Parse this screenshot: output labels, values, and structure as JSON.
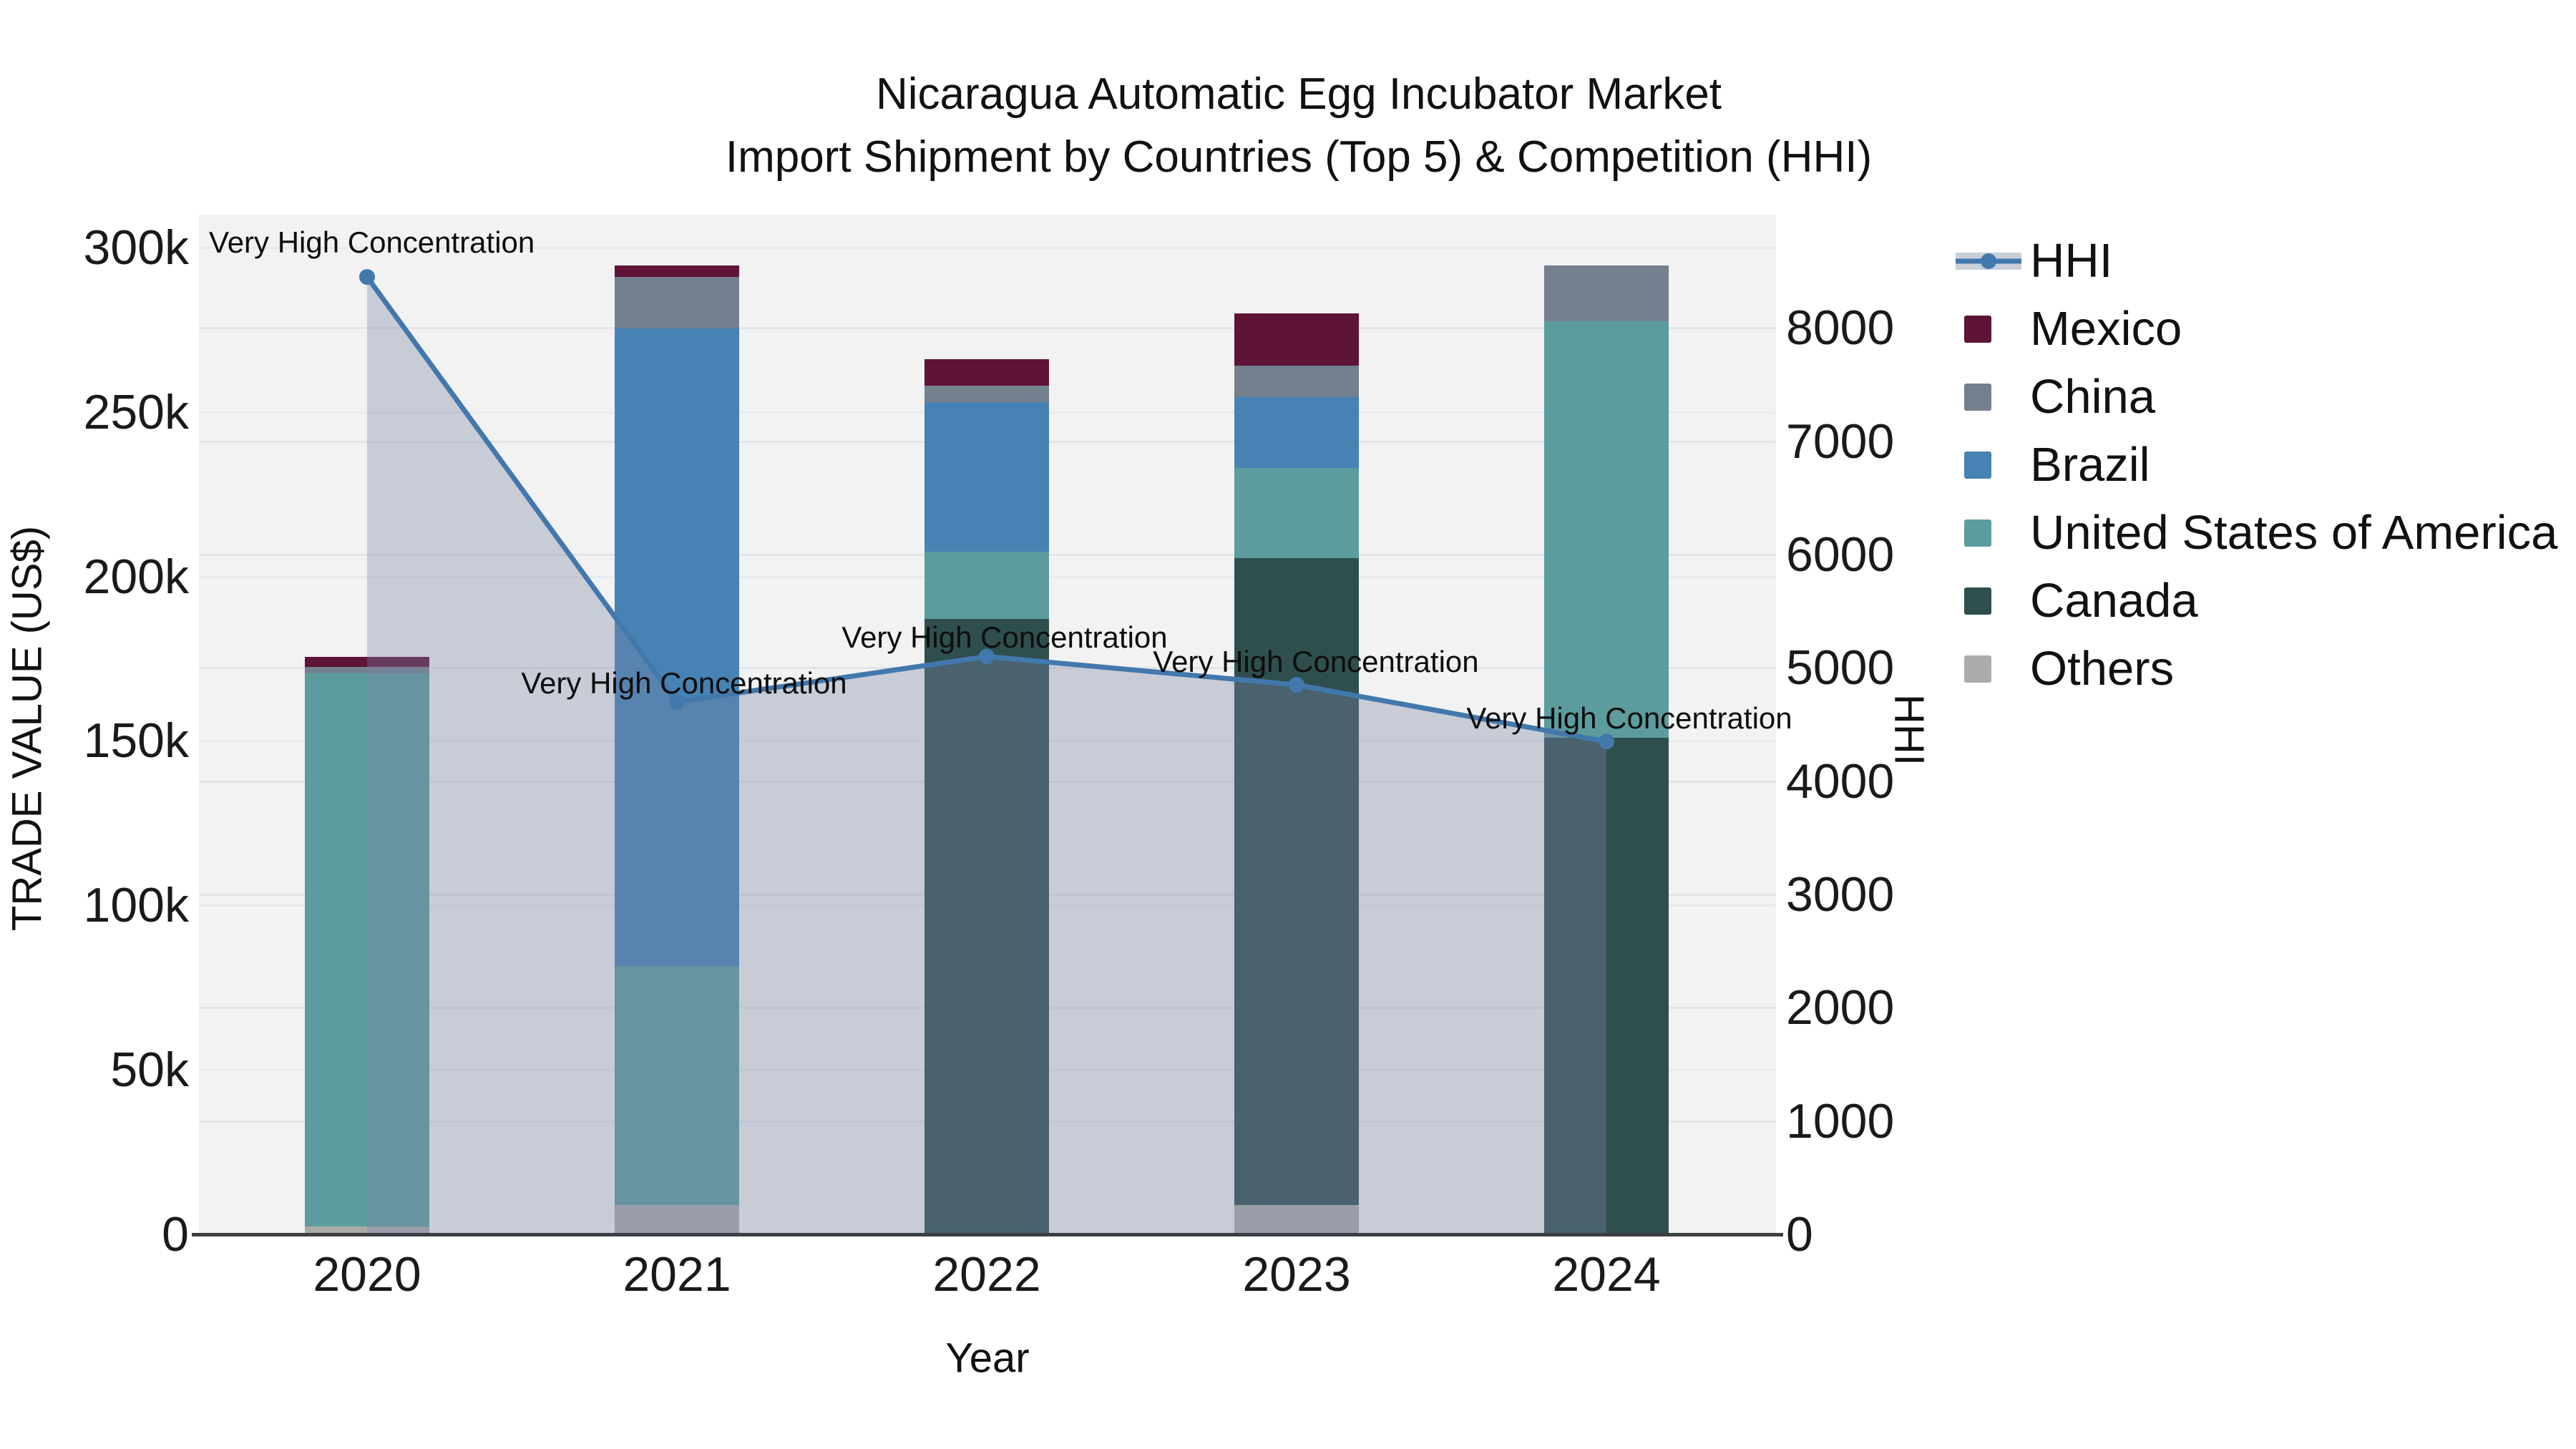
{
  "title": {
    "line1": "Nicaragua Automatic Egg Incubator Market",
    "line2": "Import Shipment by Countries (Top 5) & Competition (HHI)"
  },
  "axes": {
    "left": {
      "title": "TRADE VALUE (US$)",
      "ticks": [
        "0",
        "50k",
        "100k",
        "150k",
        "200k",
        "250k",
        "300k"
      ],
      "tick_step": 50000
    },
    "right": {
      "title": "HHI",
      "ticks": [
        "0",
        "1000",
        "2000",
        "3000",
        "4000",
        "5000",
        "6000",
        "7000",
        "8000"
      ],
      "tick_step": 1000
    },
    "x": {
      "title": "Year",
      "ticks": [
        "2020",
        "2021",
        "2022",
        "2023",
        "2024"
      ]
    }
  },
  "legend": {
    "items": [
      {
        "label": "HHI",
        "type": "line",
        "color": "#4278AC",
        "band_color": "#C9CFD9"
      },
      {
        "label": "Mexico",
        "type": "box",
        "color": "#5E1337"
      },
      {
        "label": "China",
        "type": "box",
        "color": "#74808E"
      },
      {
        "label": "Brazil",
        "type": "box",
        "color": "#4682B4"
      },
      {
        "label": "United States of America",
        "type": "box",
        "color": "#5C9C9E"
      },
      {
        "label": "Canada",
        "type": "box",
        "color": "#2F4F4F"
      },
      {
        "label": "Others",
        "type": "box",
        "color": "#ABABAB"
      }
    ]
  },
  "chart_data": [
    {
      "type": "bar",
      "stacked": true,
      "title": "Nicaragua Automatic Egg Incubator Market Import Shipment by Countries (Top 5) & Competition (HHI)",
      "xlabel": "Year",
      "ylabel": "TRADE VALUE (US$)",
      "categories": [
        "2020",
        "2021",
        "2022",
        "2023",
        "2024"
      ],
      "ylim": [
        0,
        310000
      ],
      "grid": true,
      "legend_position": "right",
      "stack_order_top_to_bottom": [
        "Mexico",
        "China",
        "Brazil",
        "United States of America",
        "Canada",
        "Others"
      ],
      "series": [
        {
          "name": "Mexico",
          "color": "#5E1337",
          "values": [
            3000,
            3500,
            8000,
            16000,
            0
          ]
        },
        {
          "name": "China",
          "color": "#74808E",
          "values": [
            2000,
            15500,
            5000,
            9500,
            17000
          ]
        },
        {
          "name": "Brazil",
          "color": "#4682B4",
          "values": [
            0,
            194000,
            45500,
            21500,
            0
          ]
        },
        {
          "name": "United States of America",
          "color": "#5C9C9E",
          "values": [
            168000,
            72500,
            20500,
            27500,
            126500
          ]
        },
        {
          "name": "Canada",
          "color": "#2F4F4F",
          "values": [
            0,
            0,
            187000,
            196500,
            151000
          ]
        },
        {
          "name": "Others",
          "color": "#ABABAB",
          "values": [
            2500,
            9000,
            0,
            9000,
            0
          ]
        }
      ]
    },
    {
      "type": "line",
      "name": "HHI",
      "x": [
        "2020",
        "2021",
        "2022",
        "2023",
        "2024"
      ],
      "values": [
        8450,
        4700,
        5100,
        4850,
        4350
      ],
      "ylabel": "HHI",
      "ylim": [
        0,
        9000
      ],
      "color": "#4278AC",
      "area_fill": true,
      "area_color": "#7A88A5",
      "area_opacity": 0.35,
      "marker": "circle",
      "annotations": [
        {
          "x": "2020",
          "text": "Very High Concentration"
        },
        {
          "x": "2021",
          "text": "Very High Concentration"
        },
        {
          "x": "2022",
          "text": "Very High Concentration"
        },
        {
          "x": "2023",
          "text": "Very High Concentration"
        },
        {
          "x": "2024",
          "text": "Very High Concentration"
        }
      ]
    }
  ]
}
